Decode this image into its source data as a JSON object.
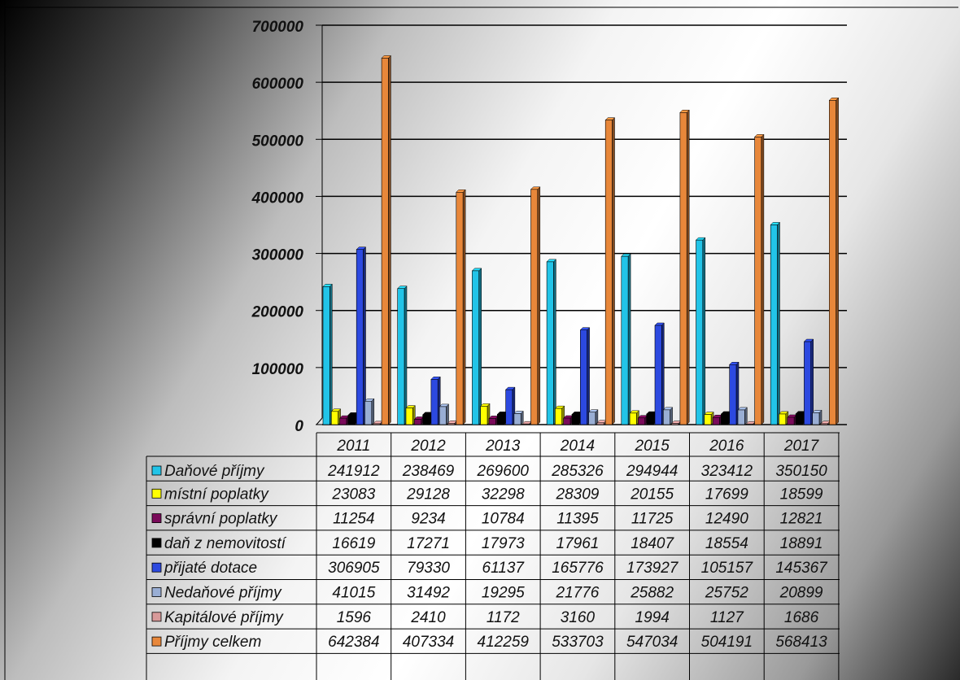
{
  "chart_data": {
    "type": "bar",
    "title": "",
    "xlabel": "",
    "ylabel": "",
    "ylim": [
      0,
      700000
    ],
    "yticks": [
      0,
      100000,
      200000,
      300000,
      400000,
      500000,
      600000,
      700000
    ],
    "grid": true,
    "legend_placement": "data-table-left",
    "categories": [
      "2011",
      "2012",
      "2013",
      "2014",
      "2015",
      "2016",
      "2017"
    ],
    "series": [
      {
        "name": "Daňové příjmy",
        "color": "#22c4e8",
        "values": [
          241912,
          238469,
          269600,
          285326,
          294944,
          323412,
          350150
        ]
      },
      {
        "name": "místní poplatky",
        "color": "#ffff00",
        "values": [
          23083,
          29128,
          32298,
          28309,
          20155,
          17699,
          18599
        ]
      },
      {
        "name": "správní poplatky",
        "color": "#7a0a5a",
        "values": [
          11254,
          9234,
          10784,
          11395,
          11725,
          12490,
          12821
        ]
      },
      {
        "name": "daň z nemovitostí",
        "color": "#000000",
        "values": [
          16619,
          17271,
          17973,
          17961,
          18407,
          18554,
          18891
        ]
      },
      {
        "name": "přijaté dotace",
        "color": "#2c49e0",
        "values": [
          306905,
          79330,
          61137,
          165776,
          173927,
          105157,
          145367
        ]
      },
      {
        "name": "Nedaňové příjmy",
        "color": "#99aed4",
        "values": [
          41015,
          31492,
          19295,
          21776,
          25882,
          25752,
          20899
        ]
      },
      {
        "name": "Kapitálové příjmy",
        "color": "#d89a9a",
        "values": [
          1596,
          2410,
          1172,
          3160,
          1994,
          1127,
          1686
        ]
      },
      {
        "name": "Příjmy celkem",
        "color": "#e8873a",
        "values": [
          642384,
          407334,
          412259,
          533703,
          547034,
          504191,
          568413
        ]
      }
    ]
  }
}
